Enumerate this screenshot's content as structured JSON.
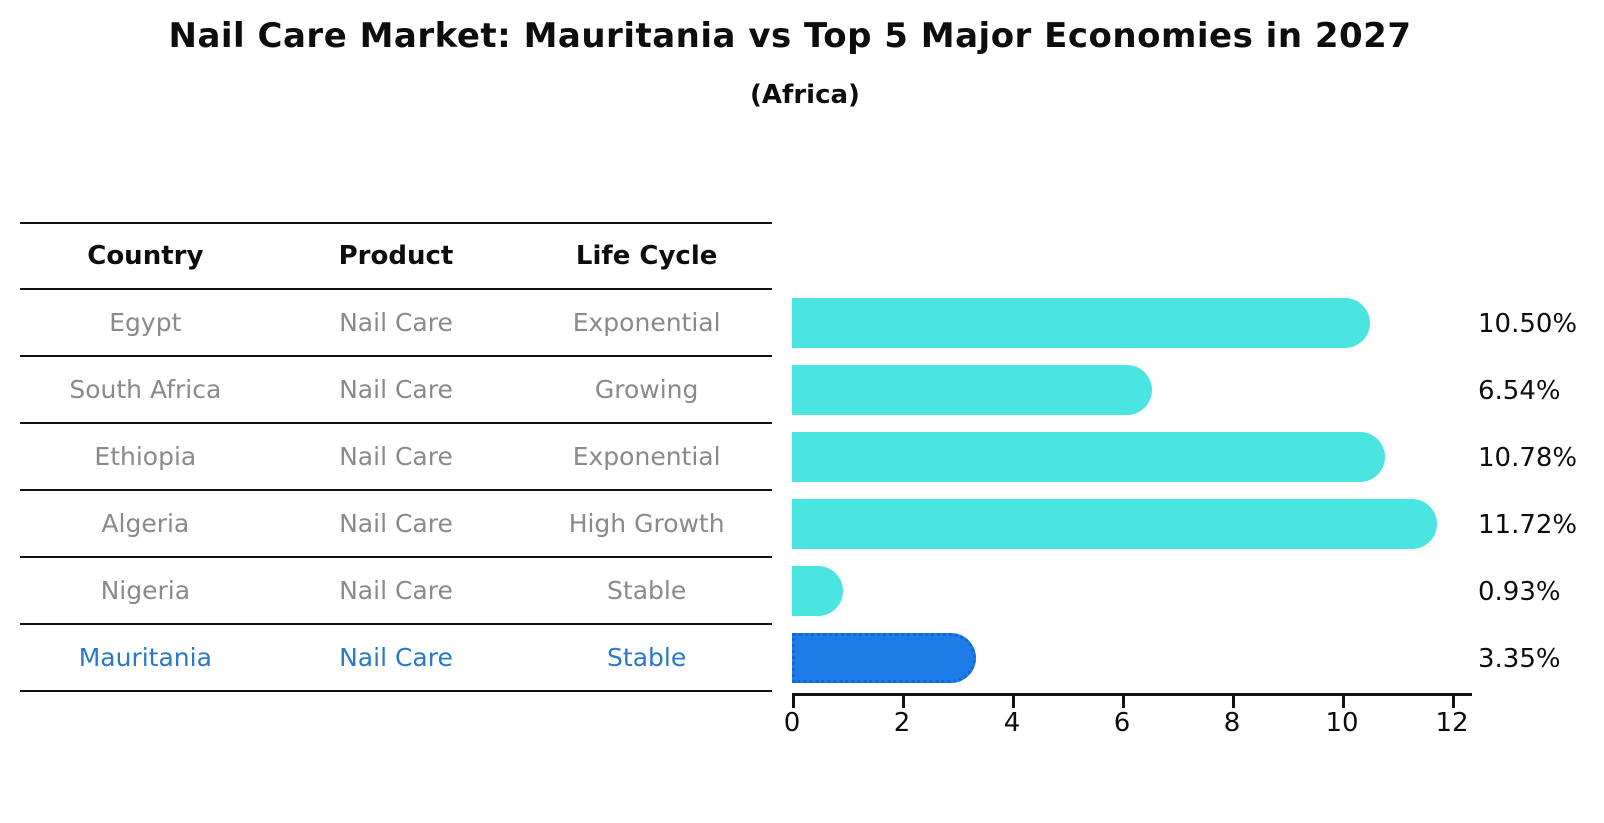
{
  "title": "Nail Care Market: Mauritania vs Top 5 Major Economies in 2027",
  "subtitle": "(Africa)",
  "table": {
    "columns": [
      "Country",
      "Product",
      "Life Cycle"
    ],
    "rows": [
      {
        "country": "Egypt",
        "product": "Nail Care",
        "life_cycle": "Exponential",
        "highlight": false
      },
      {
        "country": "South Africa",
        "product": "Nail Care",
        "life_cycle": "Growing",
        "highlight": false
      },
      {
        "country": "Ethiopia",
        "product": "Nail Care",
        "life_cycle": "Exponential",
        "highlight": false
      },
      {
        "country": "Algeria",
        "product": "Nail Care",
        "life_cycle": "High Growth",
        "highlight": false
      },
      {
        "country": "Nigeria",
        "product": "Nail Care",
        "life_cycle": "Stable",
        "highlight": false
      },
      {
        "country": "Mauritania",
        "product": "Nail Care",
        "life_cycle": "Stable",
        "highlight": true
      }
    ]
  },
  "chart_data": {
    "type": "bar",
    "orientation": "horizontal",
    "title": "Nail Care Market: Mauritania vs Top 5 Major Economies in 2027",
    "subtitle": "(Africa)",
    "categories": [
      "Egypt",
      "South Africa",
      "Ethiopia",
      "Algeria",
      "Nigeria",
      "Mauritania"
    ],
    "values": [
      10.5,
      6.54,
      10.78,
      11.72,
      0.93,
      3.35
    ],
    "value_labels": [
      "10.50%",
      "6.54%",
      "10.78%",
      "11.72%",
      "0.93%",
      "3.35%"
    ],
    "xlim": [
      0,
      12
    ],
    "xticks": [
      0,
      2,
      4,
      6,
      8,
      10,
      12
    ],
    "grid": "off",
    "legend": "none",
    "bar_color": "#4AE5E1",
    "highlight_index": 5,
    "highlight_color": "#1E7CE8",
    "highlight_border_color": "#1565D8",
    "highlight_text_color": "#2878CB"
  }
}
